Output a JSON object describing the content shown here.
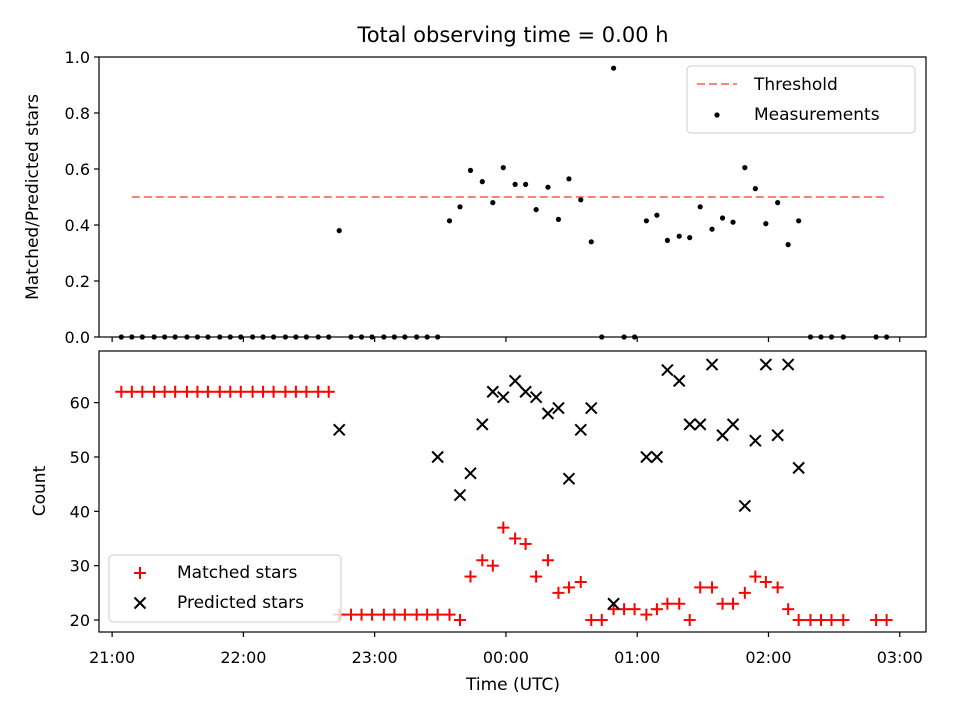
{
  "chart_data": [
    {
      "type": "scatter",
      "title": "Total observing time = 0.00 h",
      "ylabel": "Matched/Predicted stars",
      "ylim": [
        0,
        1.0
      ],
      "yticks": [
        "0.0",
        "0.2",
        "0.4",
        "0.6",
        "0.8",
        "1.0"
      ],
      "ytick_values": [
        0.0,
        0.2,
        0.4,
        0.6,
        0.8,
        1.0
      ],
      "xlim_hours": [
        -3.1,
        3.2
      ],
      "legend_position": "top-right",
      "threshold": {
        "name": "Threshold",
        "value": 0.5,
        "x_range_hours": [
          -2.85,
          2.9
        ],
        "color": "#ff7f7f",
        "style": "dashed"
      },
      "measurements": {
        "name": "Measurements",
        "color": "#000000",
        "x_hours": [
          -2.93,
          -2.85,
          -2.77,
          -2.68,
          -2.6,
          -2.52,
          -2.43,
          -2.35,
          -2.27,
          -2.18,
          -2.1,
          -2.02,
          -1.93,
          -1.85,
          -1.77,
          -1.68,
          -1.6,
          -1.52,
          -1.43,
          -1.35,
          -1.27,
          -1.18,
          -1.1,
          -1.02,
          -0.93,
          -0.85,
          -0.77,
          -0.68,
          -0.6,
          -0.52,
          -0.43,
          -0.35,
          -0.27,
          -0.18,
          -0.1,
          -0.02,
          0.07,
          0.15,
          0.23,
          0.32,
          0.4,
          0.48,
          0.57,
          0.65,
          0.73,
          0.82,
          0.9,
          0.98,
          1.07,
          1.15,
          1.23,
          1.32,
          1.4,
          1.48,
          1.57,
          1.65,
          1.73,
          1.82,
          1.9,
          1.98,
          2.07,
          2.15,
          2.23,
          2.32,
          2.4,
          2.48,
          2.57,
          2.82,
          2.9
        ],
        "y": [
          0,
          0,
          0,
          0,
          0,
          0,
          0,
          0,
          0,
          0,
          0,
          0,
          0,
          0,
          0,
          0,
          0,
          0,
          0,
          0,
          0.38,
          0,
          0,
          0,
          0,
          0,
          0,
          0,
          0,
          0,
          0.415,
          0.465,
          0.595,
          0.555,
          0.48,
          0.605,
          0.545,
          0.545,
          0.455,
          0.535,
          0.42,
          0.565,
          0.49,
          0.34,
          0,
          0.96,
          0,
          0,
          0.415,
          0.435,
          0.345,
          0.36,
          0.355,
          0.465,
          0.385,
          0.425,
          0.41,
          0.605,
          0.53,
          0.405,
          0.48,
          0.33,
          0.415,
          0,
          0,
          0,
          0,
          0,
          0
        ]
      }
    },
    {
      "type": "scatter",
      "xlabel": "Time (UTC)",
      "ylabel": "Count",
      "ylim": [
        17.8,
        69.5
      ],
      "yticks": [
        "20",
        "30",
        "40",
        "50",
        "60"
      ],
      "ytick_values": [
        20,
        30,
        40,
        50,
        60
      ],
      "xticks": [
        "21:00",
        "22:00",
        "23:00",
        "00:00",
        "01:00",
        "02:00",
        "03:00"
      ],
      "xtick_hours": [
        -3,
        -2,
        -1,
        0,
        1,
        2,
        3
      ],
      "xlim_hours": [
        -3.1,
        3.2
      ],
      "legend_position": "bottom-left",
      "series": [
        {
          "name": "Matched stars",
          "marker": "+",
          "color": "#ff0000",
          "x_hours": [
            -2.93,
            -2.85,
            -2.77,
            -2.68,
            -2.6,
            -2.52,
            -2.43,
            -2.35,
            -2.27,
            -2.18,
            -2.1,
            -2.02,
            -1.93,
            -1.85,
            -1.77,
            -1.68,
            -1.6,
            -1.52,
            -1.43,
            -1.35,
            -1.27,
            -1.18,
            -1.1,
            -1.02,
            -0.93,
            -0.85,
            -0.77,
            -0.68,
            -0.6,
            -0.52,
            -0.43,
            -0.35,
            -0.27,
            -0.18,
            -0.1,
            -0.02,
            0.07,
            0.15,
            0.23,
            0.32,
            0.4,
            0.48,
            0.57,
            0.65,
            0.73,
            0.82,
            0.9,
            0.98,
            1.07,
            1.15,
            1.23,
            1.32,
            1.4,
            1.48,
            1.57,
            1.65,
            1.73,
            1.82,
            1.9,
            1.98,
            2.07,
            2.15,
            2.23,
            2.32,
            2.4,
            2.48,
            2.57,
            2.82,
            2.9
          ],
          "y": [
            62,
            62,
            62,
            62,
            62,
            62,
            62,
            62,
            62,
            62,
            62,
            62,
            62,
            62,
            62,
            62,
            62,
            62,
            62,
            62,
            21,
            21,
            21,
            21,
            21,
            21,
            21,
            21,
            21,
            21,
            21,
            20,
            28,
            31,
            30,
            37,
            35,
            34,
            28,
            31,
            25,
            26,
            27,
            20,
            20,
            22,
            22,
            22,
            21,
            22,
            23,
            23,
            20,
            26,
            26,
            23,
            23,
            25,
            28,
            27,
            26,
            22,
            20,
            20,
            20,
            20,
            20,
            20,
            20
          ]
        },
        {
          "name": "Predicted stars",
          "marker": "x",
          "color": "#000000",
          "x_hours": [
            -1.27,
            -0.52,
            -0.35,
            -0.27,
            -0.18,
            -0.1,
            -0.02,
            0.07,
            0.15,
            0.23,
            0.32,
            0.4,
            0.48,
            0.57,
            0.65,
            0.82,
            1.07,
            1.15,
            1.23,
            1.32,
            1.4,
            1.48,
            1.57,
            1.65,
            1.73,
            1.82,
            1.9,
            1.98,
            2.07,
            2.15,
            2.23
          ],
          "y": [
            55,
            50,
            43,
            47,
            56,
            62,
            61,
            64,
            62,
            61,
            58,
            59,
            46,
            55,
            59,
            23,
            50,
            50,
            66,
            64,
            56,
            56,
            67,
            54,
            56,
            41,
            53,
            67,
            54,
            67,
            48
          ]
        }
      ]
    }
  ]
}
